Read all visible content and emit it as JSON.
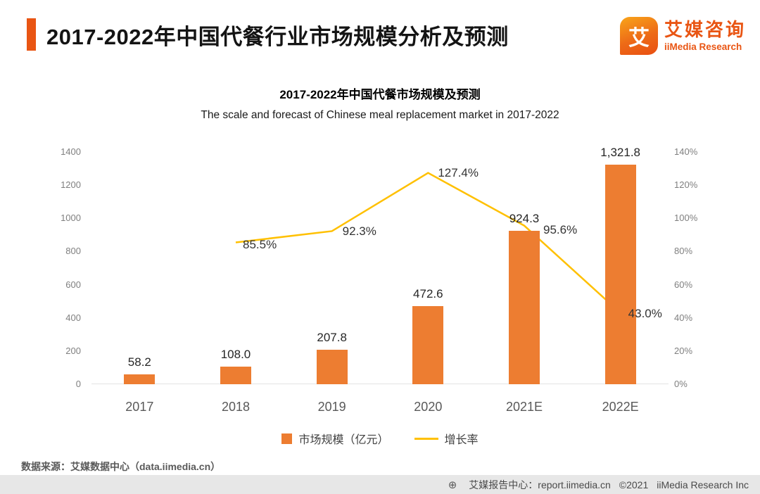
{
  "header": {
    "title": "2017-2022年中国代餐行业市场规模分析及预测",
    "accent_color": "#E95513",
    "logo": {
      "glyph": "艾",
      "brand_cn": "艾媒咨询",
      "brand_en": "iiMedia Research",
      "color": "#E95513"
    }
  },
  "chart": {
    "title": "2017-2022年中国代餐市场规模及预测",
    "subtitle": "The scale and forecast of Chinese meal replacement market in 2017-2022"
  },
  "chart_data": {
    "type": "bar+line",
    "categories": [
      "2017",
      "2018",
      "2019",
      "2020",
      "2021E",
      "2022E"
    ],
    "series": [
      {
        "name": "市场规模（亿元）",
        "type": "bar",
        "axis": "left",
        "color": "#ED7D31",
        "values": [
          58.2,
          108.0,
          207.8,
          472.6,
          924.3,
          1321.8
        ],
        "labels": [
          "58.2",
          "108.0",
          "207.8",
          "472.6",
          "924.3",
          "1,321.8"
        ]
      },
      {
        "name": "增长率",
        "type": "line",
        "axis": "right",
        "color": "#FFC000",
        "values": [
          null,
          85.5,
          92.3,
          127.4,
          95.6,
          43.0
        ],
        "labels": [
          null,
          "85.5%",
          "92.3%",
          "127.4%",
          "95.6%",
          "43.0%"
        ]
      }
    ],
    "left_axis": {
      "min": 0,
      "max": 1400,
      "ticks": [
        "1400",
        "1200",
        "1000",
        "800",
        "600",
        "400",
        "200",
        "0"
      ]
    },
    "right_axis": {
      "min": 0,
      "max": 140,
      "ticks": [
        "140%",
        "120%",
        "100%",
        "80%",
        "60%",
        "40%",
        "20%",
        "0%"
      ]
    },
    "grid": false,
    "legend_position": "bottom"
  },
  "footer": {
    "source": "数据来源：艾媒数据中心（data.iimedia.cn）",
    "bar": {
      "icon_glyph": "⊕",
      "report_center": "艾媒报告中心：report.iimedia.cn",
      "copyright": "©2021",
      "company": "iiMedia Research Inc"
    }
  }
}
